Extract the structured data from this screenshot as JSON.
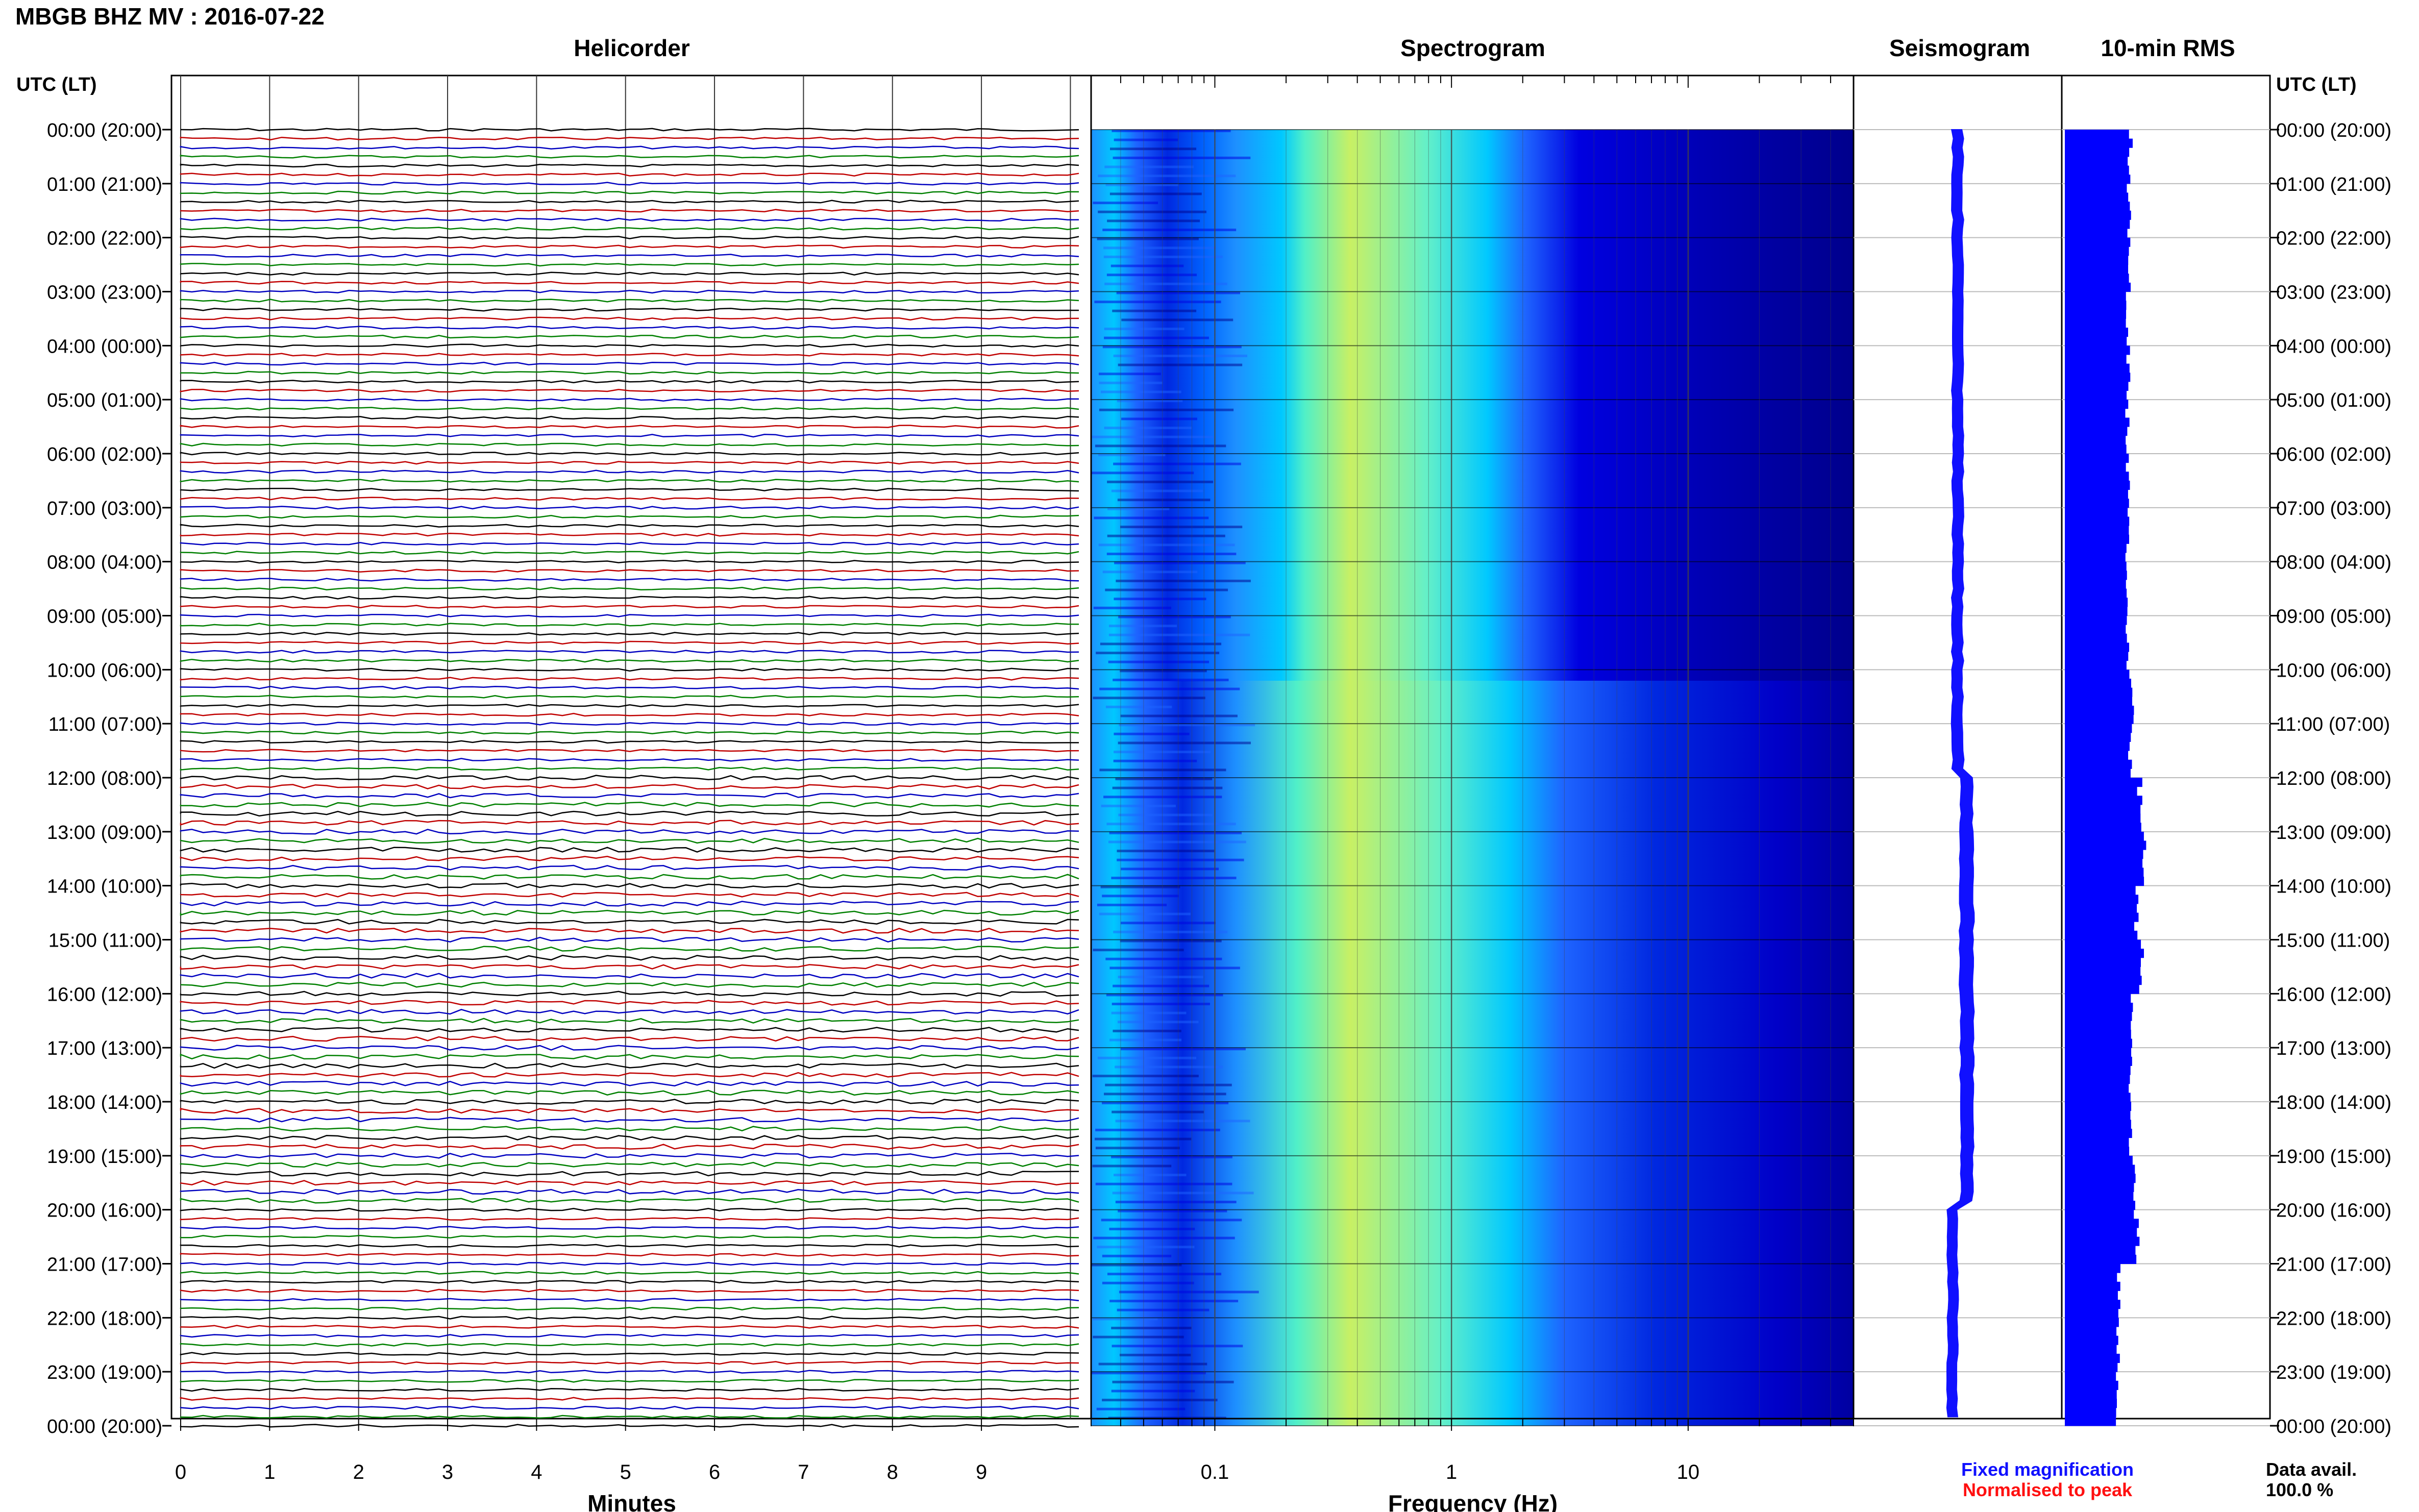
{
  "header": {
    "station_title": "MBGB BHZ MV : 2016-07-22",
    "left_axis_label": "UTC (LT)",
    "right_axis_label": "UTC (LT)"
  },
  "panels": {
    "helicorder": "Helicorder",
    "spectrogram": "Spectrogram",
    "seismogram": "Seismogram",
    "rms": "10-min RMS"
  },
  "axes": {
    "minutes_label": "Minutes",
    "frequency_label": "Frequency (Hz)"
  },
  "legend": {
    "fixed": "Fixed magnification",
    "fixed_color": "#1010ff",
    "normalised": "Normalised to peak",
    "normalised_color": "#ff1010"
  },
  "availability": {
    "label": "Data avail.",
    "value": "100.0 %"
  },
  "chart_data": {
    "type": "heatmap",
    "title": "MBGB BHZ MV : 2016-07-22",
    "time_labels": [
      "00:00 (20:00)",
      "01:00 (21:00)",
      "02:00 (22:00)",
      "03:00 (23:00)",
      "04:00 (00:00)",
      "05:00 (01:00)",
      "06:00 (02:00)",
      "07:00 (03:00)",
      "08:00 (04:00)",
      "09:00 (05:00)",
      "10:00 (06:00)",
      "11:00 (07:00)",
      "12:00 (08:00)",
      "13:00 (09:00)",
      "14:00 (10:00)",
      "15:00 (11:00)",
      "16:00 (12:00)",
      "17:00 (13:00)",
      "18:00 (14:00)",
      "19:00 (15:00)",
      "20:00 (16:00)",
      "21:00 (17:00)",
      "22:00 (18:00)",
      "23:00 (19:00)",
      "00:00 (20:00)"
    ],
    "helicorder": {
      "xlabel": "Minutes",
      "x_ticks": [
        "0",
        "1",
        "2",
        "3",
        "4",
        "5",
        "6",
        "7",
        "8",
        "9"
      ],
      "xlim": [
        0,
        10
      ],
      "traces_per_hour": 6,
      "trace_colors": [
        "#000000",
        "#c00000",
        "#0000c0",
        "#008000"
      ]
    },
    "spectrogram": {
      "xlabel": "Frequency (Hz)",
      "x_scale": "log",
      "x_ticks": [
        "0.1",
        "1",
        "10"
      ],
      "xlim": [
        0.03,
        50
      ],
      "colors": [
        "#00008c",
        "#0000e0",
        "#1e64ff",
        "#00c8ff",
        "#50f0c8",
        "#c8f064"
      ]
    },
    "seismogram": {
      "rms_by_hour": [
        1.0,
        1.0,
        1.0,
        1.0,
        1.0,
        1.0,
        1.0,
        1.0,
        1.0,
        1.0,
        1.0,
        1.05,
        1.15,
        1.3,
        1.3,
        1.3,
        1.25,
        1.25,
        1.2,
        1.15,
        0.95,
        0.95,
        0.95,
        0.95
      ]
    },
    "rms_10min": {
      "values_by_hour": [
        1.0,
        0.98,
        0.97,
        0.97,
        0.97,
        0.96,
        0.96,
        0.96,
        0.96,
        0.96,
        1.02,
        1.0,
        1.15,
        1.2,
        1.1,
        1.18,
        1.05,
        1.0,
        1.0,
        1.05,
        1.1,
        0.82,
        0.82,
        0.8
      ]
    }
  }
}
